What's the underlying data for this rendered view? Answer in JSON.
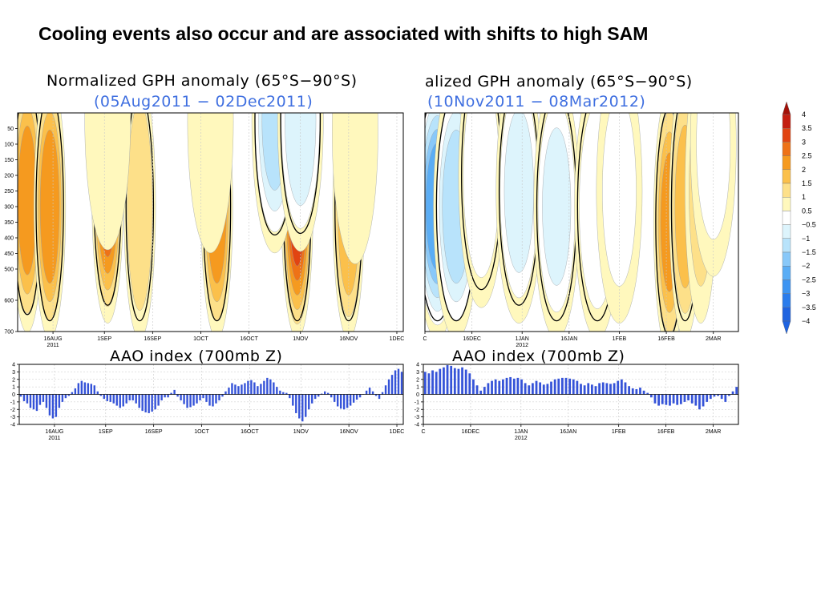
{
  "slide_title": "Cooling events also occur and are associated with shifts to high SAM",
  "colors": {
    "ramp": [
      "#1f63e0",
      "#2a7cec",
      "#3c94f2",
      "#5aadf5",
      "#88c8f9",
      "#b8e3fb",
      "#ddf4fc",
      "#ffffff",
      "#fff8bd",
      "#fde089",
      "#fbc04b",
      "#f59a1f",
      "#ee7217",
      "#e14412",
      "#c41e10",
      "#a31108"
    ],
    "bar": "#3553d8",
    "subtitle": "#3f6fe0",
    "grid": "#c8c8c8"
  },
  "colorbar_labels": [
    "4",
    "3.5",
    "3",
    "2.5",
    "2",
    "1.5",
    "1",
    "0.5",
    "−0.5",
    "−1",
    "−1.5",
    "−2",
    "−2.5",
    "−3",
    "−3.5",
    "−4"
  ],
  "panels": {
    "left": {
      "heatmap_title": "Normalized GPH anomaly (65°S−90°S)",
      "heatmap_subtitle": "(05Aug2011 − 02Dec2011)",
      "aao_title": "AAO index (700mb Z)",
      "x_ticks": [
        {
          "day": 11,
          "line1": "16AUG",
          "line2": "2011"
        },
        {
          "day": 27,
          "line1": "1SEP",
          "line2": ""
        },
        {
          "day": 42,
          "line1": "16SEP",
          "line2": ""
        },
        {
          "day": 57,
          "line1": "1OCT",
          "line2": ""
        },
        {
          "day": 72,
          "line1": "16OCT",
          "line2": ""
        },
        {
          "day": 88,
          "line1": "1NOV",
          "line2": ""
        },
        {
          "day": 103,
          "line1": "16NOV",
          "line2": ""
        },
        {
          "day": 118,
          "line1": "1DEC",
          "line2": ""
        }
      ]
    },
    "right": {
      "heatmap_title": "alized GPH anomaly (65°S−90°S)",
      "heatmap_subtitle": "(10Nov2011 − 08Mar2012)",
      "aao_title": "AAO index (700mb Z)",
      "x_ticks": [
        {
          "day": 0,
          "line1": "C",
          "line2": ""
        },
        {
          "day": 15,
          "line1": "16DEC",
          "line2": ""
        },
        {
          "day": 31,
          "line1": "1JAN",
          "line2": "2012"
        },
        {
          "day": 46,
          "line1": "16JAN",
          "line2": ""
        },
        {
          "day": 62,
          "line1": "1FEB",
          "line2": ""
        },
        {
          "day": 77,
          "line1": "16FEB",
          "line2": ""
        },
        {
          "day": 92,
          "line1": "2MAR",
          "line2": ""
        }
      ]
    }
  },
  "chart_data": [
    {
      "type": "heatmap",
      "title": "Normalized GPH anomaly (65°S−90°S)",
      "subtitle": "(05Aug2011 − 02Dec2011)",
      "ylabel": "",
      "y_ticks": [
        "50",
        "100",
        "150",
        "200",
        "250",
        "300",
        "350",
        "400",
        "450",
        "500",
        "600",
        "700"
      ],
      "y_levels": [
        50,
        100,
        150,
        200,
        250,
        300,
        350,
        400,
        450,
        500,
        600,
        700
      ],
      "levels": [
        -4,
        -3.5,
        -3,
        -2.5,
        -2,
        -1.5,
        -1,
        -0.5,
        0.5,
        1,
        1.5,
        2,
        2.5,
        3,
        3.5,
        4
      ],
      "legend": "colorbar right",
      "x_tick_labels": [
        "16AUG 2011",
        "1SEP",
        "16SEP",
        "1OCT",
        "16OCT",
        "1NOV",
        "16NOV",
        "1DEC"
      ],
      "days": 120,
      "anomaly_features": [
        {
          "day": 3,
          "level": 280,
          "value": 2.2
        },
        {
          "day": 10,
          "level": 300,
          "value": 2.3
        },
        {
          "day": 28,
          "level": 250,
          "value": 2.6
        },
        {
          "day": 38,
          "level": 300,
          "value": 1.4
        },
        {
          "day": 62,
          "level": 300,
          "value": 2.3
        },
        {
          "day": 87,
          "level": 300,
          "value": 3.0
        },
        {
          "day": 103,
          "level": 300,
          "value": 1.9
        },
        {
          "day": 80,
          "level": 25,
          "value": -2.0
        },
        {
          "day": 88,
          "level": 20,
          "value": -1.8
        },
        {
          "day": 28,
          "level": 15,
          "value": -0.7
        },
        {
          "day": 105,
          "level": 60,
          "value": -0.8
        },
        {
          "day": 60,
          "level": 25,
          "value": -0.6
        }
      ]
    },
    {
      "type": "bar",
      "title": "AAO index (700mb Z)",
      "ylim": [
        -4,
        4
      ],
      "y_ticks": [
        4,
        3,
        2,
        1,
        0,
        -1,
        -2,
        -3,
        -4
      ],
      "x_tick_labels": [
        "16AUG 2011",
        "1SEP",
        "16SEP",
        "1OCT",
        "16OCT",
        "1NOV",
        "16NOV",
        "1DEC"
      ],
      "values": [
        -0.3,
        -0.9,
        -1.2,
        -1.8,
        -2.0,
        -2.2,
        -1.4,
        -1.0,
        -1.8,
        -2.8,
        -3.2,
        -3.0,
        -1.8,
        -1.0,
        -0.5,
        -0.2,
        0.3,
        0.8,
        1.5,
        1.8,
        1.6,
        1.5,
        1.4,
        1.2,
        0.4,
        -0.2,
        -0.6,
        -0.9,
        -1.0,
        -1.2,
        -1.5,
        -1.8,
        -1.6,
        -1.2,
        -0.8,
        -0.8,
        -1.2,
        -1.8,
        -2.2,
        -2.4,
        -2.5,
        -2.3,
        -2.0,
        -1.5,
        -0.8,
        -0.4,
        -0.4,
        0.2,
        0.6,
        -0.3,
        -0.8,
        -1.3,
        -1.8,
        -1.7,
        -1.5,
        -1.2,
        -0.8,
        -0.5,
        -1.0,
        -1.5,
        -1.6,
        -1.2,
        -0.8,
        -0.3,
        0.4,
        0.9,
        1.5,
        1.3,
        1.1,
        1.3,
        1.5,
        1.8,
        1.9,
        1.6,
        1.1,
        1.4,
        1.8,
        2.2,
        2.0,
        1.6,
        1.0,
        0.5,
        0.3,
        0.2,
        -0.5,
        -1.5,
        -2.5,
        -3.2,
        -3.6,
        -3.0,
        -2.0,
        -1.2,
        -0.6,
        -0.3,
        0.1,
        0.4,
        0.2,
        -0.4,
        -1.0,
        -1.6,
        -1.9,
        -2.0,
        -1.8,
        -1.5,
        -1.1,
        -0.7,
        -0.4,
        0.0,
        0.5,
        0.9,
        0.4,
        -0.2,
        -0.6,
        0.3,
        1.2,
        2.0,
        2.6,
        3.2,
        3.4,
        3.0
      ]
    },
    {
      "type": "heatmap",
      "title": "alized GPH anomaly (65°S−90°S)",
      "subtitle": "(10Nov2011 − 08Mar2012)",
      "levels": [
        -4,
        -3.5,
        -3,
        -2.5,
        -2,
        -1.5,
        -1,
        -0.5,
        0.5,
        1,
        1.5,
        2,
        2.5,
        3,
        3.5,
        4
      ],
      "x_tick_labels": [
        "C",
        "16DEC",
        "1JAN 2012",
        "16JAN",
        "1FEB",
        "16FEB",
        "2MAR"
      ],
      "days": 100,
      "anomaly_features": [
        {
          "day": 4,
          "level": 300,
          "value": -3.2
        },
        {
          "day": 10,
          "level": 300,
          "value": -2.3
        },
        {
          "day": 18,
          "level": 200,
          "value": -1.3
        },
        {
          "day": 30,
          "level": 250,
          "value": -1.6
        },
        {
          "day": 42,
          "level": 300,
          "value": -1.5
        },
        {
          "day": 55,
          "level": 300,
          "value": -1.3
        },
        {
          "day": 62,
          "level": 250,
          "value": -1.0
        },
        {
          "day": 78,
          "level": 350,
          "value": 2.0
        },
        {
          "day": 83,
          "level": 300,
          "value": 1.6
        },
        {
          "day": 88,
          "level": 250,
          "value": 1.0
        },
        {
          "day": 92,
          "level": 100,
          "value": -1.0
        }
      ]
    },
    {
      "type": "bar",
      "title": "AAO index (700mb Z)",
      "ylim": [
        -4,
        4
      ],
      "y_ticks": [
        4,
        3,
        2,
        1,
        0,
        -1,
        -2,
        -3,
        -4
      ],
      "x_tick_labels": [
        "C",
        "16DEC",
        "1JAN 2012",
        "16JAN",
        "1FEB",
        "16FEB",
        "2MAR"
      ],
      "values": [
        3.0,
        2.8,
        3.2,
        3.0,
        3.4,
        3.6,
        3.9,
        3.8,
        3.5,
        3.4,
        3.6,
        3.3,
        2.8,
        2.0,
        1.2,
        0.5,
        1.0,
        1.5,
        1.8,
        2.0,
        1.8,
        2.0,
        2.2,
        2.3,
        2.1,
        2.2,
        2.0,
        1.5,
        1.2,
        1.5,
        1.8,
        1.6,
        1.3,
        1.4,
        1.7,
        2.0,
        2.1,
        2.2,
        2.2,
        2.1,
        2.0,
        1.8,
        1.4,
        1.2,
        1.5,
        1.3,
        1.1,
        1.5,
        1.6,
        1.5,
        1.4,
        1.5,
        1.8,
        2.0,
        1.6,
        1.1,
        0.8,
        0.7,
        0.9,
        0.5,
        0.2,
        -0.4,
        -1.2,
        -1.5,
        -1.3,
        -1.4,
        -1.5,
        -1.2,
        -1.4,
        -1.3,
        -1.0,
        -0.8,
        -1.2,
        -1.5,
        -2.0,
        -1.6,
        -1.0,
        -0.6,
        -0.3,
        -0.2,
        -0.6,
        -1.0,
        -0.2,
        0.4,
        1.0
      ]
    }
  ]
}
